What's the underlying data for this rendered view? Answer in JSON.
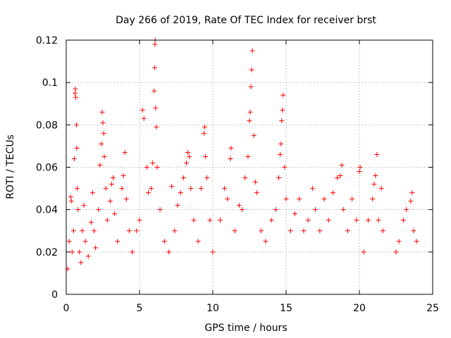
{
  "chart_data": {
    "type": "scatter",
    "title": "Day 266 of 2019, Rate Of TEC Index for receiver brst",
    "xlabel": "GPS time / hours",
    "ylabel": "ROTI / TECUs",
    "xlim": [
      0,
      25
    ],
    "ylim": [
      0,
      0.12
    ],
    "x_ticks": [
      0,
      5,
      10,
      15,
      20,
      25
    ],
    "x_tick_labels": [
      "0",
      "5",
      "10",
      "15",
      "20",
      "25"
    ],
    "y_ticks": [
      0,
      0.02,
      0.04,
      0.06,
      0.08,
      0.1,
      0.12
    ],
    "y_tick_labels": [
      "0",
      "0.02",
      "0.04",
      "0.06",
      "0.08",
      "0.1",
      "0.12"
    ],
    "grid": true,
    "grid_style": "dotted",
    "marker": "plus",
    "color": "#ff0000",
    "series": [
      {
        "name": "",
        "points": [
          [
            0.1,
            0.012
          ],
          [
            0.2,
            0.025
          ],
          [
            0.3,
            0.046
          ],
          [
            0.35,
            0.044
          ],
          [
            0.4,
            0.02
          ],
          [
            0.5,
            0.03
          ],
          [
            0.55,
            0.064
          ],
          [
            0.6,
            0.095
          ],
          [
            0.62,
            0.097
          ],
          [
            0.65,
            0.093
          ],
          [
            0.7,
            0.08
          ],
          [
            0.72,
            0.069
          ],
          [
            0.75,
            0.05
          ],
          [
            0.8,
            0.04
          ],
          [
            0.9,
            0.02
          ],
          [
            1.0,
            0.015
          ],
          [
            1.1,
            0.03
          ],
          [
            1.2,
            0.042
          ],
          [
            1.3,
            0.025
          ],
          [
            1.5,
            0.018
          ],
          [
            1.7,
            0.034
          ],
          [
            1.8,
            0.048
          ],
          [
            1.9,
            0.03
          ],
          [
            2.0,
            0.022
          ],
          [
            2.2,
            0.04
          ],
          [
            2.3,
            0.061
          ],
          [
            2.4,
            0.071
          ],
          [
            2.45,
            0.086
          ],
          [
            2.5,
            0.081
          ],
          [
            2.55,
            0.076
          ],
          [
            2.6,
            0.065
          ],
          [
            2.7,
            0.05
          ],
          [
            2.8,
            0.035
          ],
          [
            3.0,
            0.044
          ],
          [
            3.1,
            0.052
          ],
          [
            3.2,
            0.055
          ],
          [
            3.3,
            0.038
          ],
          [
            3.5,
            0.025
          ],
          [
            3.8,
            0.05
          ],
          [
            3.9,
            0.056
          ],
          [
            4.0,
            0.067
          ],
          [
            4.1,
            0.045
          ],
          [
            4.3,
            0.03
          ],
          [
            4.5,
            0.02
          ],
          [
            4.8,
            0.03
          ],
          [
            5.0,
            0.035
          ],
          [
            5.2,
            0.087
          ],
          [
            5.3,
            0.083
          ],
          [
            5.5,
            0.06
          ],
          [
            5.6,
            0.048
          ],
          [
            5.8,
            0.05
          ],
          [
            5.9,
            0.062
          ],
          [
            6.0,
            0.096
          ],
          [
            6.03,
            0.107
          ],
          [
            6.05,
            0.118
          ],
          [
            6.07,
            0.12
          ],
          [
            6.1,
            0.088
          ],
          [
            6.15,
            0.079
          ],
          [
            6.2,
            0.06
          ],
          [
            6.4,
            0.04
          ],
          [
            6.7,
            0.025
          ],
          [
            7.0,
            0.02
          ],
          [
            7.2,
            0.051
          ],
          [
            7.4,
            0.03
          ],
          [
            7.6,
            0.042
          ],
          [
            7.8,
            0.048
          ],
          [
            8.0,
            0.055
          ],
          [
            8.2,
            0.062
          ],
          [
            8.3,
            0.067
          ],
          [
            8.4,
            0.065
          ],
          [
            8.5,
            0.05
          ],
          [
            8.7,
            0.035
          ],
          [
            9.0,
            0.025
          ],
          [
            9.2,
            0.05
          ],
          [
            9.4,
            0.076
          ],
          [
            9.45,
            0.079
          ],
          [
            9.5,
            0.065
          ],
          [
            9.6,
            0.055
          ],
          [
            9.8,
            0.035
          ],
          [
            10.0,
            0.02
          ],
          [
            10.5,
            0.035
          ],
          [
            10.8,
            0.05
          ],
          [
            11.0,
            0.045
          ],
          [
            11.2,
            0.064
          ],
          [
            11.25,
            0.069
          ],
          [
            11.5,
            0.03
          ],
          [
            11.8,
            0.042
          ],
          [
            12.0,
            0.04
          ],
          [
            12.2,
            0.055
          ],
          [
            12.4,
            0.065
          ],
          [
            12.5,
            0.082
          ],
          [
            12.55,
            0.086
          ],
          [
            12.6,
            0.098
          ],
          [
            12.65,
            0.106
          ],
          [
            12.7,
            0.115
          ],
          [
            12.8,
            0.075
          ],
          [
            12.9,
            0.053
          ],
          [
            13.0,
            0.048
          ],
          [
            13.3,
            0.03
          ],
          [
            13.6,
            0.025
          ],
          [
            14.0,
            0.035
          ],
          [
            14.3,
            0.04
          ],
          [
            14.5,
            0.055
          ],
          [
            14.6,
            0.066
          ],
          [
            14.65,
            0.071
          ],
          [
            14.7,
            0.082
          ],
          [
            14.75,
            0.087
          ],
          [
            14.8,
            0.094
          ],
          [
            14.9,
            0.06
          ],
          [
            15.0,
            0.045
          ],
          [
            15.3,
            0.03
          ],
          [
            15.6,
            0.038
          ],
          [
            15.9,
            0.045
          ],
          [
            16.2,
            0.03
          ],
          [
            16.5,
            0.035
          ],
          [
            16.8,
            0.05
          ],
          [
            17.0,
            0.04
          ],
          [
            17.3,
            0.03
          ],
          [
            17.6,
            0.045
          ],
          [
            17.9,
            0.035
          ],
          [
            18.2,
            0.048
          ],
          [
            18.5,
            0.055
          ],
          [
            18.7,
            0.056
          ],
          [
            18.8,
            0.061
          ],
          [
            18.9,
            0.04
          ],
          [
            19.2,
            0.03
          ],
          [
            19.5,
            0.045
          ],
          [
            19.8,
            0.035
          ],
          [
            20.0,
            0.058
          ],
          [
            20.05,
            0.06
          ],
          [
            20.3,
            0.02
          ],
          [
            20.6,
            0.035
          ],
          [
            20.9,
            0.045
          ],
          [
            21.0,
            0.052
          ],
          [
            21.1,
            0.056
          ],
          [
            21.2,
            0.066
          ],
          [
            21.3,
            0.035
          ],
          [
            21.5,
            0.05
          ],
          [
            21.6,
            0.03
          ],
          [
            22.5,
            0.02
          ],
          [
            22.7,
            0.025
          ],
          [
            23.0,
            0.035
          ],
          [
            23.2,
            0.04
          ],
          [
            23.5,
            0.044
          ],
          [
            23.6,
            0.048
          ],
          [
            23.7,
            0.03
          ],
          [
            23.9,
            0.025
          ]
        ]
      }
    ]
  }
}
